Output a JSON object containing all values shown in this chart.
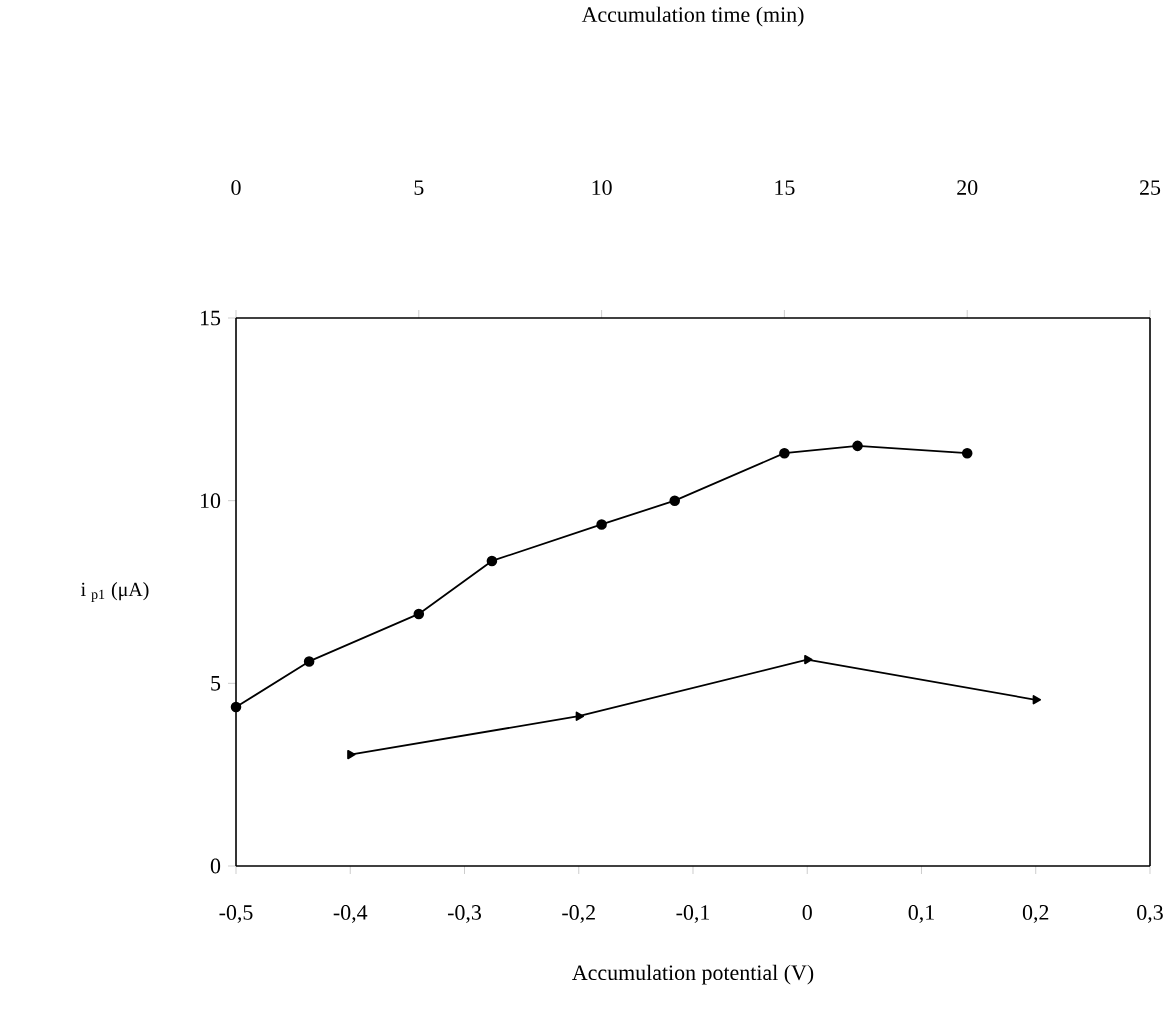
{
  "chart_data": {
    "type": "line",
    "xlabel": "Accumulation potential (V)",
    "x2label": "Accumulation time (min)",
    "ylabel": "i $_{p1}$ (μA)",
    "xlim": [
      -0.5,
      0.3
    ],
    "xticks": [
      {
        "value": -0.5,
        "label": "-0,5"
      },
      {
        "value": -0.4,
        "label": "-0,4"
      },
      {
        "value": -0.3,
        "label": "-0,3"
      },
      {
        "value": -0.2,
        "label": "-0,2"
      },
      {
        "value": -0.1,
        "label": "-0,1"
      },
      0,
      {
        "value": 0.1,
        "label": "0,1"
      },
      {
        "value": 0.2,
        "label": "0,2"
      },
      {
        "value": 0.3,
        "label": "0,3"
      }
    ],
    "x2lim": [
      0,
      25
    ],
    "x2ticks": [
      0,
      5,
      10,
      15,
      20,
      25
    ],
    "ylim": [
      0,
      15
    ],
    "yticks": [
      0,
      5,
      10,
      15
    ],
    "series": [
      {
        "axis": "x2",
        "marker": "circle",
        "color": "#000000",
        "x": [
          0,
          2,
          5,
          7,
          10,
          12,
          15,
          17,
          20
        ],
        "values": [
          4.35,
          5.6,
          6.9,
          8.35,
          9.35,
          10.0,
          11.3,
          11.5,
          11.3
        ]
      },
      {
        "marker": "triangle",
        "color": "#000000",
        "x": [
          -0.4,
          -0.2,
          0,
          0.2
        ],
        "values": [
          3.05,
          4.1,
          5.65,
          4.55
        ]
      }
    ]
  }
}
